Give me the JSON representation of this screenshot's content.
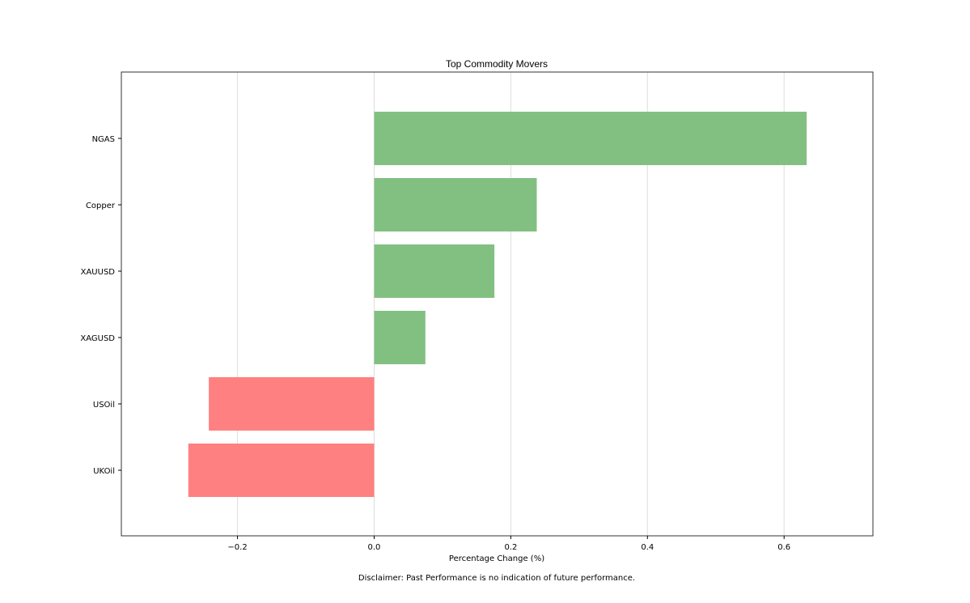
{
  "chart_data": {
    "type": "bar",
    "orientation": "horizontal",
    "title": "Top Commodity Movers",
    "xlabel": "Percentage Change (%)",
    "ylabel": "",
    "categories": [
      "NGAS",
      "Copper",
      "XAUUSD",
      "XAGUSD",
      "USOil",
      "UKOil"
    ],
    "values": [
      0.633,
      0.238,
      0.176,
      0.075,
      -0.242,
      -0.272
    ],
    "xlim": [
      -0.37,
      0.73
    ],
    "xticks": [
      -0.2,
      0.0,
      0.2,
      0.4,
      0.6
    ],
    "xtick_labels": [
      "−0.2",
      "0.0",
      "0.2",
      "0.4",
      "0.6"
    ],
    "grid": "vertical",
    "colors": {
      "positive": "#82c082",
      "negative": "#ff8080",
      "grid": "#dddddd",
      "frame": "#333333"
    }
  },
  "disclaimer": "Disclaimer: Past Performance is no indication of future performance."
}
